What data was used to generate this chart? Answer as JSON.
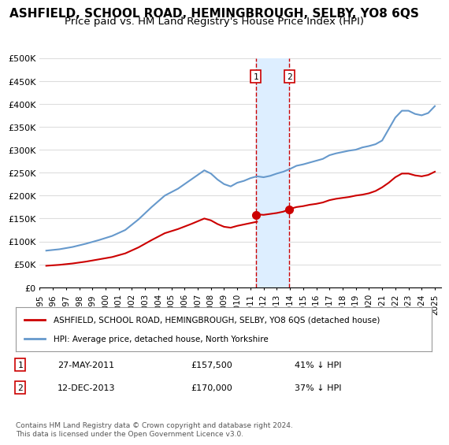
{
  "title": "ASHFIELD, SCHOOL ROAD, HEMINGBROUGH, SELBY, YO8 6QS",
  "subtitle": "Price paid vs. HM Land Registry's House Price Index (HPI)",
  "legend_label_red": "ASHFIELD, SCHOOL ROAD, HEMINGBROUGH, SELBY, YO8 6QS (detached house)",
  "legend_label_blue": "HPI: Average price, detached house, North Yorkshire",
  "footnote": "Contains HM Land Registry data © Crown copyright and database right 2024.\nThis data is licensed under the Open Government Licence v3.0.",
  "sale1_label": "1",
  "sale1_date": "27-MAY-2011",
  "sale1_price": "£157,500",
  "sale1_hpi": "41% ↓ HPI",
  "sale2_label": "2",
  "sale2_date": "12-DEC-2013",
  "sale2_price": "£170,000",
  "sale2_hpi": "37% ↓ HPI",
  "sale1_x": 2011.4,
  "sale1_y": 157500,
  "sale2_x": 2013.95,
  "sale2_y": 170000,
  "ylim": [
    0,
    500000
  ],
  "xlim": [
    1995,
    2025.5
  ],
  "background_color": "#ffffff",
  "plot_bg_color": "#ffffff",
  "grid_color": "#dddddd",
  "red_color": "#cc0000",
  "blue_color": "#6699cc",
  "vline_color": "#cc0000",
  "highlight_color": "#ddeeff",
  "title_fontsize": 11,
  "subtitle_fontsize": 9.5
}
